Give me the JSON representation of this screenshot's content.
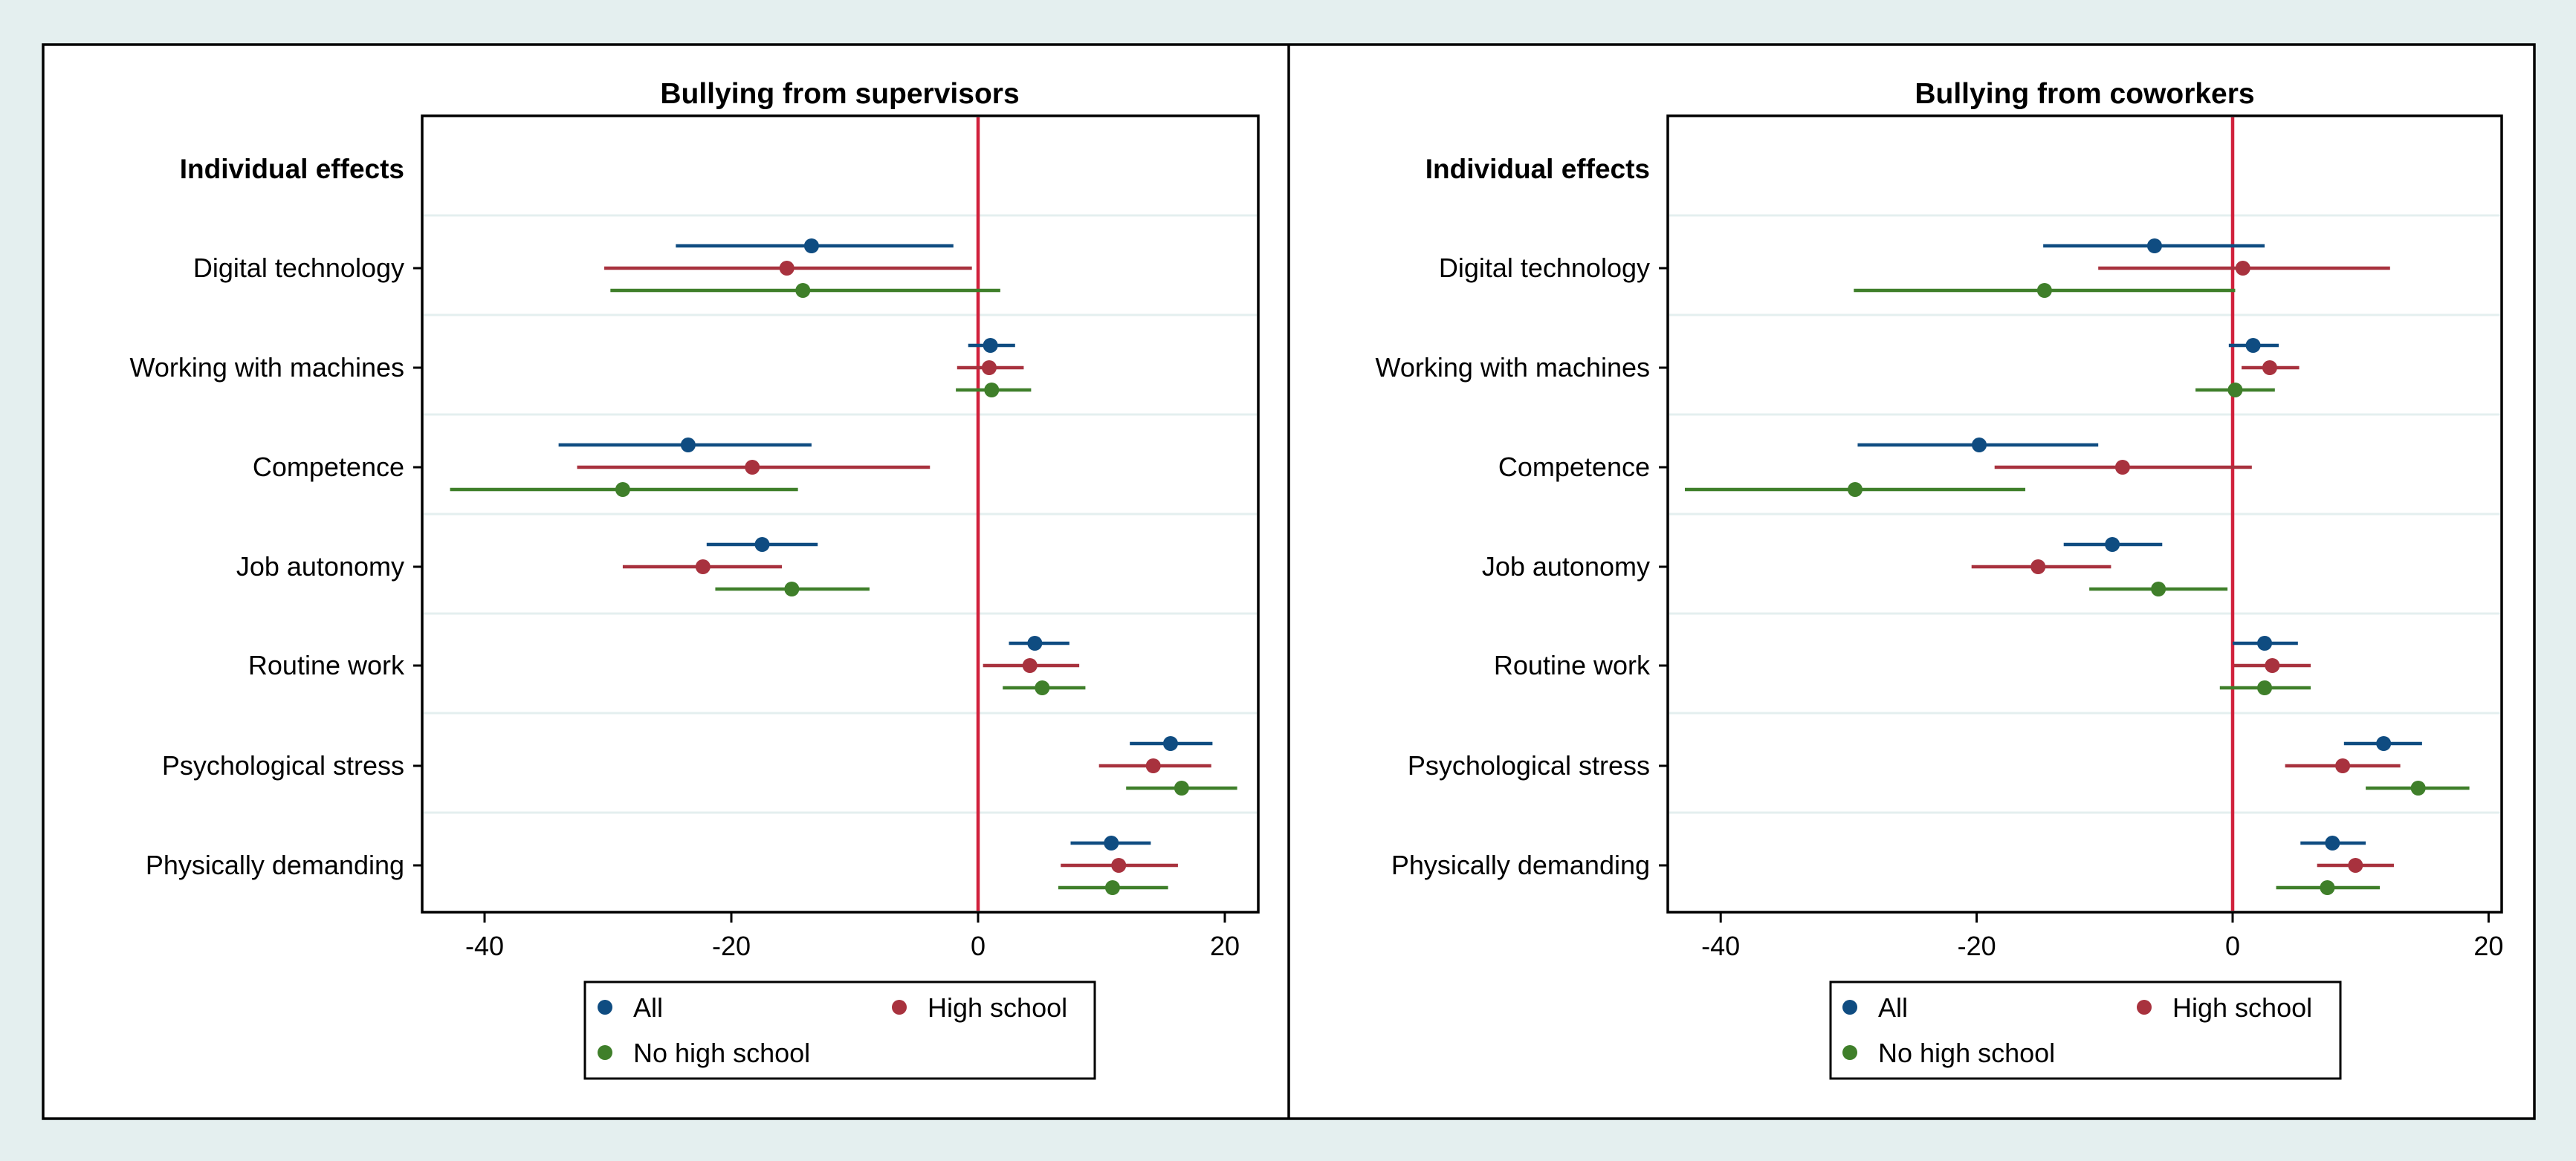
{
  "colors": {
    "all": "#0f4c81",
    "high_school": "#a8323e",
    "no_high_school": "#3f7f2a",
    "zero_line": "#d1213c"
  },
  "legend": {
    "all": "All",
    "high_school": "High school",
    "no_high_school": "No high school"
  },
  "chart_data": [
    {
      "type": "scatter",
      "subtype": "coefficient-plot",
      "title": "Bullying from supervisors",
      "heading": "Individual effects",
      "categories": [
        "Digital technology",
        "Working with machines",
        "Competence",
        "Job autonomy",
        "Routine work",
        "Psychological stress",
        "Physically demanding"
      ],
      "xlim": [
        -44,
        22
      ],
      "xticks": [
        -40,
        -20,
        0,
        20
      ],
      "series": [
        {
          "key": "all",
          "name": "All",
          "values": [
            -13.5,
            1.0,
            -23.5,
            -17.5,
            4.6,
            15.6,
            10.8
          ],
          "ci": [
            [
              -24.5,
              -2.0
            ],
            [
              -0.8,
              3.0
            ],
            [
              -34.0,
              -13.5
            ],
            [
              -22.0,
              -13.0
            ],
            [
              2.5,
              7.4
            ],
            [
              12.3,
              19.0
            ],
            [
              7.5,
              14.0
            ]
          ]
        },
        {
          "key": "high_school",
          "name": "High school",
          "values": [
            -15.5,
            0.9,
            -18.3,
            -22.3,
            4.2,
            14.2,
            11.4
          ],
          "ci": [
            [
              -30.3,
              -0.5
            ],
            [
              -1.7,
              3.7
            ],
            [
              -32.5,
              -3.9
            ],
            [
              -28.8,
              -15.9
            ],
            [
              0.4,
              8.2
            ],
            [
              9.8,
              18.9
            ],
            [
              6.7,
              16.2
            ]
          ]
        },
        {
          "key": "no_high_school",
          "name": "No high school",
          "values": [
            -14.2,
            1.1,
            -28.8,
            -15.1,
            5.2,
            16.5,
            10.9
          ],
          "ci": [
            [
              -29.8,
              1.8
            ],
            [
              -1.8,
              4.3
            ],
            [
              -42.8,
              -14.6
            ],
            [
              -21.3,
              -8.8
            ],
            [
              2.0,
              8.7
            ],
            [
              12.0,
              21.0
            ],
            [
              6.5,
              15.4
            ]
          ]
        }
      ]
    },
    {
      "type": "scatter",
      "subtype": "coefficient-plot",
      "title": "Bullying from coworkers",
      "heading": "Individual effects",
      "categories": [
        "Digital technology",
        "Working with machines",
        "Competence",
        "Job autonomy",
        "Routine work",
        "Psychological stress",
        "Physically demanding"
      ],
      "xlim": [
        -43,
        21
      ],
      "xticks": [
        -40,
        -20,
        0,
        20
      ],
      "series": [
        {
          "key": "all",
          "name": "All",
          "values": [
            -6.1,
            1.6,
            -19.8,
            -9.4,
            2.5,
            11.8,
            7.8
          ],
          "ci": [
            [
              -14.8,
              2.5
            ],
            [
              -0.3,
              3.6
            ],
            [
              -29.3,
              -10.5
            ],
            [
              -13.2,
              -5.5
            ],
            [
              0.0,
              5.1
            ],
            [
              8.7,
              14.8
            ],
            [
              5.3,
              10.4
            ]
          ]
        },
        {
          "key": "high_school",
          "name": "High school",
          "values": [
            0.8,
            2.9,
            -8.6,
            -15.2,
            3.1,
            8.6,
            9.6
          ],
          "ci": [
            [
              -10.5,
              12.3
            ],
            [
              0.7,
              5.2
            ],
            [
              -18.6,
              1.5
            ],
            [
              -20.4,
              -9.5
            ],
            [
              0.1,
              6.1
            ],
            [
              4.1,
              13.1
            ],
            [
              6.6,
              12.6
            ]
          ]
        },
        {
          "key": "no_high_school",
          "name": "No high school",
          "values": [
            -14.7,
            0.2,
            -29.5,
            -5.8,
            2.5,
            14.5,
            7.4
          ],
          "ci": [
            [
              -29.6,
              0.2
            ],
            [
              -2.9,
              3.3
            ],
            [
              -42.8,
              -16.2
            ],
            [
              -11.2,
              -0.4
            ],
            [
              -1.0,
              6.1
            ],
            [
              10.4,
              18.5
            ],
            [
              3.4,
              11.5
            ]
          ]
        }
      ]
    }
  ]
}
